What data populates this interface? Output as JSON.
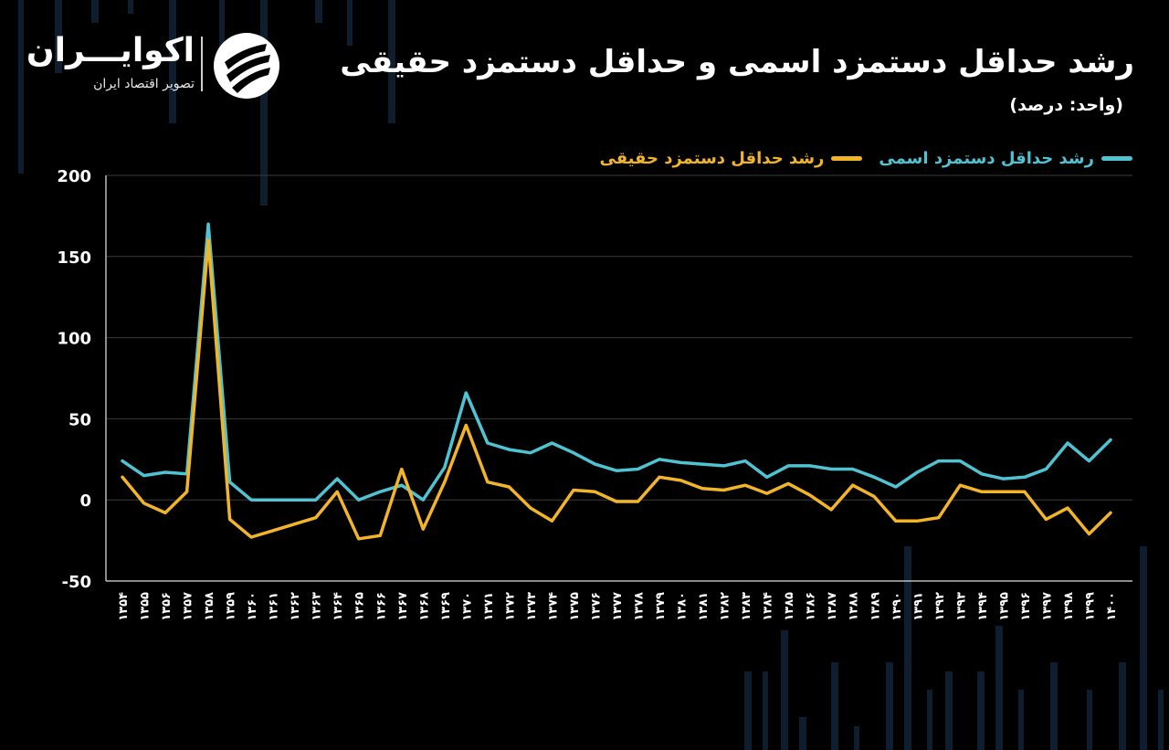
{
  "logo": {
    "name": "اکوایـــران",
    "subtitle": "تصویر اقتصاد ایران",
    "mark_icon": "stacked-swoosh-icon"
  },
  "header": {
    "title": "رشد حداقل دستمزد اسمی و حداقل دستمزد حقیقی",
    "unit": "(واحد: درصد)"
  },
  "colors": {
    "background": "#000000",
    "nominal": "#4fc3d1",
    "real": "#f2b527",
    "grid": "#3a3a3a",
    "background_bars": "#0f1e2e"
  },
  "chart_data": {
    "type": "line",
    "title": "رشد حداقل دستمزد اسمی و حداقل دستمزد حقیقی",
    "xlabel": "",
    "ylabel": "",
    "ylim": [
      -50,
      200
    ],
    "yticks": [
      "200",
      "150",
      "100",
      "50",
      "0",
      "-50"
    ],
    "grid": true,
    "legend_position": "top-right",
    "categories": [
      "۱۳۵۴",
      "۱۳۵۵",
      "۱۳۵۶",
      "۱۳۵۷",
      "۱۳۵۸",
      "۱۳۵۹",
      "۱۳۶۰",
      "۱۳۶۱",
      "۱۳۶۲",
      "۱۳۶۳",
      "۱۳۶۴",
      "۱۳۶۵",
      "۱۳۶۶",
      "۱۳۶۷",
      "۱۳۶۸",
      "۱۳۶۹",
      "۱۳۷۰",
      "۱۳۷۱",
      "۱۳۷۲",
      "۱۳۷۳",
      "۱۳۷۴",
      "۱۳۷۵",
      "۱۳۷۶",
      "۱۳۷۷",
      "۱۳۷۸",
      "۱۳۷۹",
      "۱۳۸۰",
      "۱۳۸۱",
      "۱۳۸۲",
      "۱۳۸۳",
      "۱۳۸۴",
      "۱۳۸۵",
      "۱۳۸۶",
      "۱۳۸۷",
      "۱۳۸۸",
      "۱۳۸۹",
      "۱۳۹۰",
      "۱۳۹۱",
      "۱۳۹۲",
      "۱۳۹۳",
      "۱۳۹۴",
      "۱۳۹۵",
      "۱۳۹۶",
      "۱۳۹۷",
      "۱۳۹۸",
      "۱۳۹۹",
      "۱۴۰۰"
    ],
    "series": [
      {
        "name": "رشد حداقل دستمزد اسمی",
        "color": "#4fc3d1",
        "values": [
          24,
          15,
          17,
          16,
          170,
          11,
          0,
          0,
          0,
          0,
          13,
          0,
          5,
          9,
          0,
          20,
          66,
          35,
          31,
          29,
          35,
          29,
          22,
          18,
          19,
          25,
          23,
          22,
          21,
          24,
          14,
          21,
          21,
          19,
          19,
          14,
          8,
          17,
          24,
          24,
          16,
          13,
          14,
          19,
          35,
          24,
          37
        ]
      },
      {
        "name": "رشد حداقل دستمزد حقیقی",
        "color": "#f2b527",
        "values": [
          14,
          -2,
          -8,
          5,
          160,
          -12,
          -23,
          -19,
          -15,
          -11,
          5,
          -24,
          -22,
          19,
          -18,
          11,
          46,
          11,
          8,
          -5,
          -13,
          6,
          5,
          -1,
          -1,
          14,
          12,
          7,
          6,
          9,
          4,
          10,
          3,
          -6,
          9,
          2,
          -13,
          -13,
          -11,
          9,
          5,
          5,
          5,
          -12,
          -5,
          -21,
          -8
        ]
      }
    ]
  }
}
